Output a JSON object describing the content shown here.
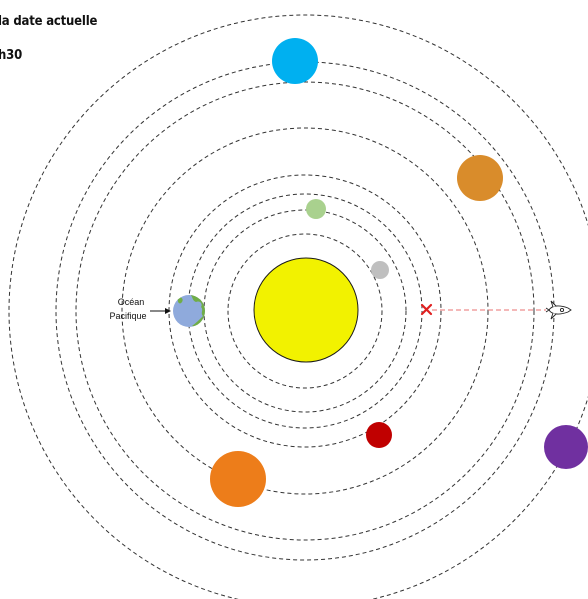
{
  "captions": {
    "line1": "la date actuelle",
    "line2": "h30"
  },
  "earth_label": {
    "line1": "Océan",
    "line2": "Pacifique"
  },
  "colors": {
    "sun": "#F2F200",
    "mercury": "#BFBFBF",
    "venus": "#A9D18E",
    "earth_ocean": "#8FAADC",
    "earth_land": "#70AD47",
    "mars": "#C00000",
    "jupiter": "#ED7D1A",
    "saturn": "#D98C2B",
    "uranus": "#00B0F0",
    "neptune": "#7030A0",
    "orbit": "#333333",
    "marker": "#E02020",
    "trajectory": "#E87070"
  },
  "icons": {
    "target": "cross-mark-icon",
    "probe": "rocket-icon"
  }
}
